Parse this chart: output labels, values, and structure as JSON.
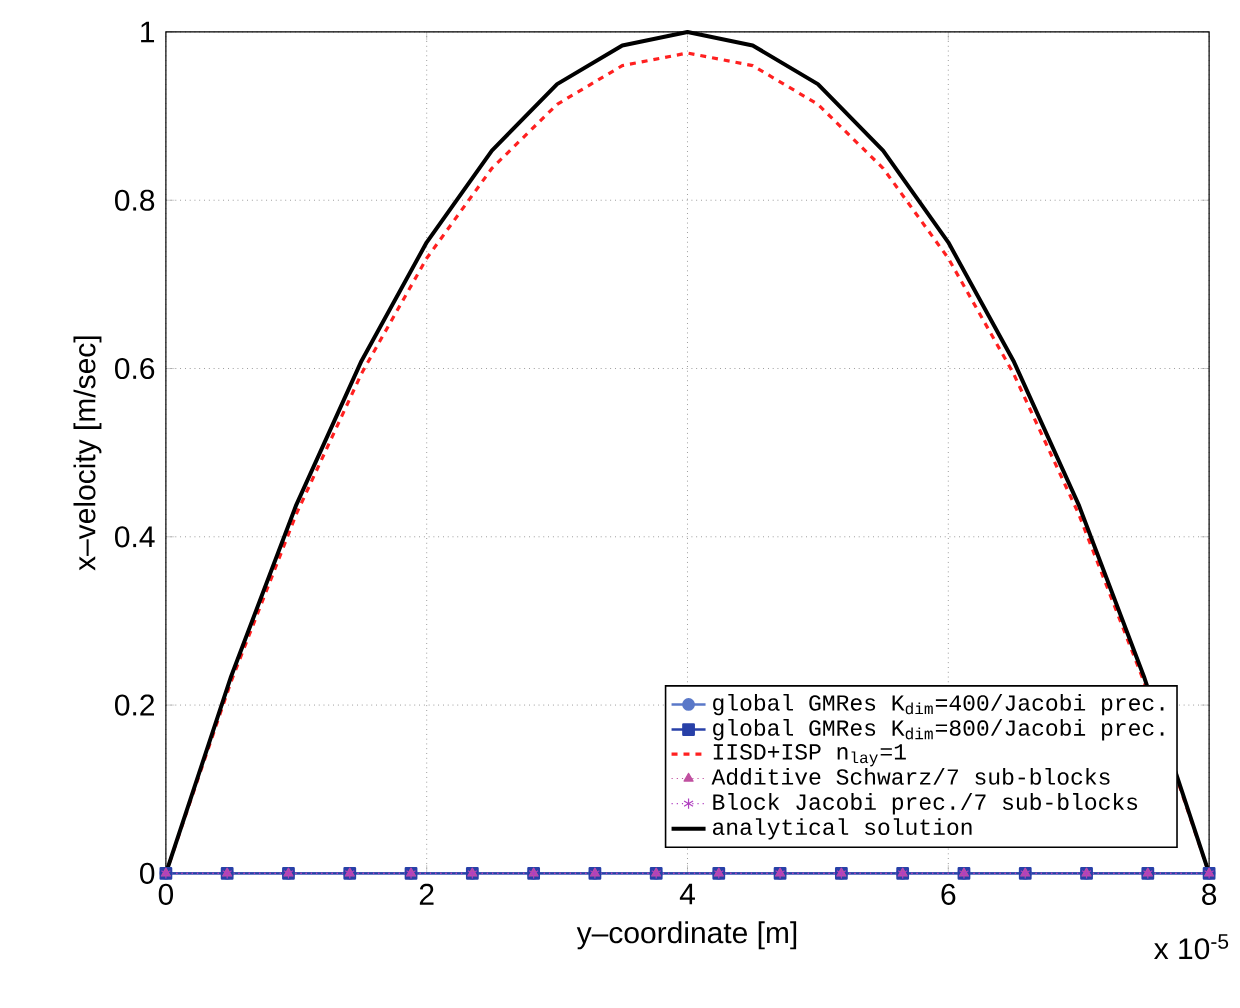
{
  "chart_data": {
    "type": "line",
    "xlabel": "y–coordinate [m]",
    "ylabel": "x–velocity [m/sec]",
    "xlim": [
      0,
      8
    ],
    "ylim": [
      0,
      1
    ],
    "xticks": [
      0,
      2,
      4,
      6,
      8
    ],
    "yticks": [
      0,
      0.2,
      0.4,
      0.6,
      0.8,
      1
    ],
    "grid": true,
    "legend": "bottom right",
    "annotations": [
      "x 10$^{-5}$"
    ],
    "series": [
      {
        "name": "global GMRes K$_{dim}$=400/Jacobi prec.",
        "color": "#5a78c8",
        "marker": "circle",
        "line_style": "solid",
        "x": [
          0,
          0.47,
          0.94,
          1.41,
          1.88,
          2.35,
          2.82,
          3.29,
          3.76,
          4.24,
          4.71,
          5.18,
          5.65,
          6.12,
          6.59,
          7.06,
          7.53,
          8
        ],
        "values": [
          0,
          0,
          0,
          0,
          0,
          0,
          0,
          0,
          0,
          0,
          0,
          0,
          0,
          0,
          0,
          0,
          0,
          0
        ]
      },
      {
        "name": "global GMRes K$_{dim}$=800/Jacobi prec.",
        "color": "#2840a8",
        "marker": "square",
        "line_style": "solid",
        "x": [
          0,
          0.47,
          0.94,
          1.41,
          1.88,
          2.35,
          2.82,
          3.29,
          3.76,
          4.24,
          4.71,
          5.18,
          5.65,
          6.12,
          6.59,
          7.06,
          7.53,
          8
        ],
        "values": [
          0,
          0,
          0,
          0,
          0,
          0,
          0,
          0,
          0,
          0,
          0,
          0,
          0,
          0,
          0,
          0,
          0,
          0
        ]
      },
      {
        "name": "IISD+ISP n$_{lay}$=1",
        "color": "#ff2020",
        "marker": "none",
        "line_style": "dashed",
        "x": [
          0,
          0.5,
          1,
          1.5,
          2,
          2.5,
          3,
          3.5,
          4,
          4.5,
          5,
          5.5,
          6,
          6.5,
          7,
          7.5,
          8
        ],
        "values": [
          0,
          0.228,
          0.427,
          0.594,
          0.731,
          0.838,
          0.914,
          0.96,
          0.975,
          0.96,
          0.914,
          0.838,
          0.731,
          0.594,
          0.427,
          0.228,
          0
        ]
      },
      {
        "name": "Additive Schwarz/7 sub-blocks",
        "color": "#c050a0",
        "marker": "triangle",
        "line_style": "dotted",
        "x": [
          0,
          0.47,
          0.94,
          1.41,
          1.88,
          2.35,
          2.82,
          3.29,
          3.76,
          4.24,
          4.71,
          5.18,
          5.65,
          6.12,
          6.59,
          7.06,
          7.53,
          8
        ],
        "values": [
          0,
          0,
          0,
          0,
          0,
          0,
          0,
          0,
          0,
          0,
          0,
          0,
          0,
          0,
          0,
          0,
          0,
          0
        ]
      },
      {
        "name": "Block Jacobi prec./7 sub-blocks",
        "color": "#b040c0",
        "marker": "cross",
        "line_style": "dotted",
        "x": [
          0,
          0.47,
          0.94,
          1.41,
          1.88,
          2.35,
          2.82,
          3.29,
          3.76,
          4.24,
          4.71,
          5.18,
          5.65,
          6.12,
          6.59,
          7.06,
          7.53,
          8
        ],
        "values": [
          0,
          0,
          0,
          0,
          0,
          0,
          0,
          0,
          0,
          0,
          0,
          0,
          0,
          0,
          0,
          0,
          0,
          0
        ]
      },
      {
        "name": "analytical solution",
        "color": "#000000",
        "marker": "none",
        "line_style": "solid",
        "x": [
          0,
          0.5,
          1,
          1.5,
          2,
          2.5,
          3,
          3.5,
          4,
          4.5,
          5,
          5.5,
          6,
          6.5,
          7,
          7.5,
          8
        ],
        "values": [
          0,
          0.234,
          0.438,
          0.609,
          0.75,
          0.859,
          0.938,
          0.984,
          1,
          0.984,
          0.938,
          0.859,
          0.75,
          0.609,
          0.438,
          0.234,
          0
        ]
      }
    ]
  }
}
